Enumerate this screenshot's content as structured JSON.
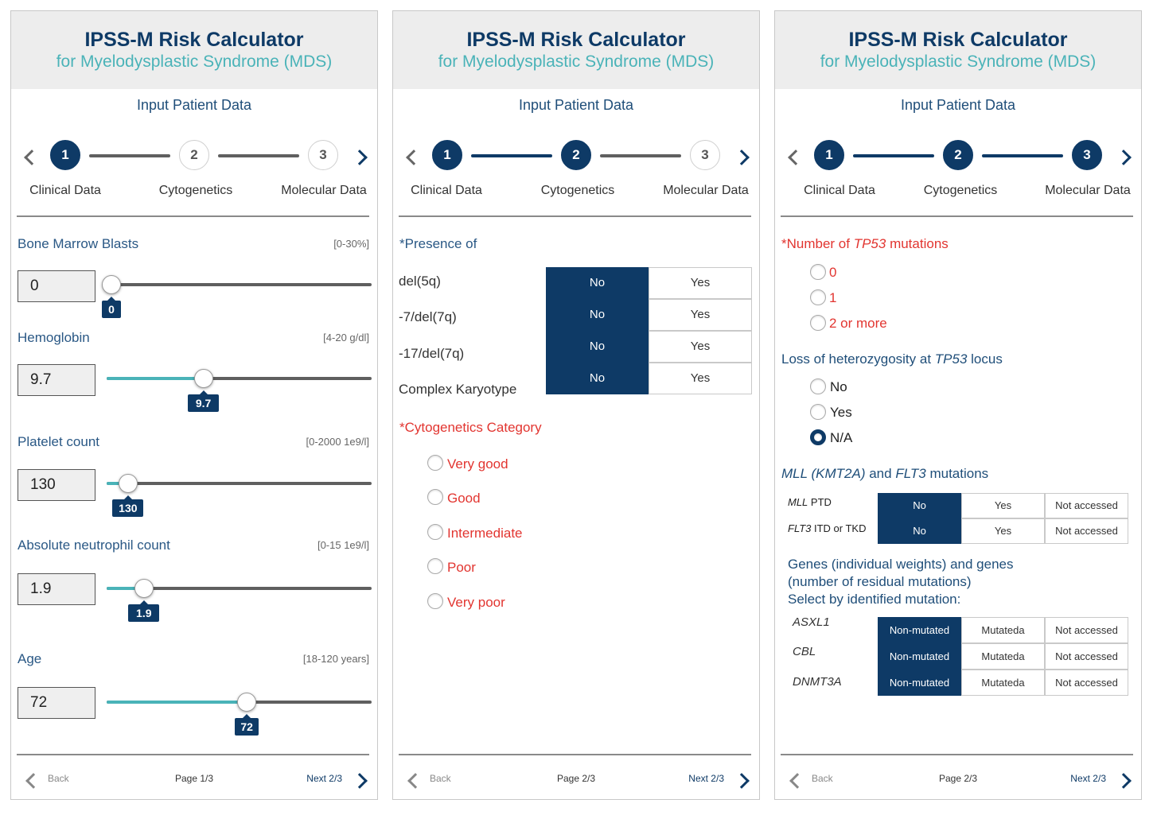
{
  "header": {
    "title": "IPSS-M Risk Calculator",
    "subtitle": "for Myelodysplastic Syndrome (MDS)"
  },
  "section_title": "Input Patient Data",
  "steps": [
    "1",
    "2",
    "3"
  ],
  "step_labels": [
    "Clinical Data",
    "Cytogenetics",
    "Molecular Data"
  ],
  "nav": {
    "back": "Back",
    "next": "Next 2/3",
    "page1": "Page 1/3",
    "page2": "Page 2/3"
  },
  "colors": {
    "navy": "#0e3a66",
    "teal": "#4ab3b8",
    "red": "#e23530"
  },
  "clinical": [
    {
      "label": "Bone Marrow Blasts",
      "range": "[0-30%]",
      "value": "0",
      "fraction": 0.0
    },
    {
      "label": "Hemoglobin",
      "range": "[4-20 g/dl]",
      "value": "9.7",
      "fraction": 0.36
    },
    {
      "label": "Platelet count",
      "range": "[0-2000 1e9/l]",
      "value": "130",
      "fraction": 0.065
    },
    {
      "label": "Absolute neutrophil count",
      "range": "[0-15 1e9/l]",
      "value": "1.9",
      "fraction": 0.127
    },
    {
      "label": "Age",
      "range": "[18-120 years]",
      "value": "72",
      "fraction": 0.53
    }
  ],
  "cyto": {
    "presence_title": "*Presence of",
    "rows": [
      {
        "label": "del(5q)",
        "no": "No",
        "yes": "Yes",
        "selected": "No"
      },
      {
        "label": "-7/del(7q)",
        "no": "No",
        "yes": "Yes",
        "selected": "No"
      },
      {
        "label": "-17/del(7q)",
        "no": "No",
        "yes": "Yes",
        "selected": "No"
      },
      {
        "label": "Complex Karyotype",
        "no": "No",
        "yes": "Yes",
        "selected": "No"
      }
    ],
    "category_title": "*Cytogenetics Category",
    "categories": [
      "Very good",
      "Good",
      "Intermediate",
      "Poor",
      "Very poor"
    ]
  },
  "molecular": {
    "tp53_title_pre": "*Number of ",
    "tp53_gene": "TP53",
    "tp53_title_post": " mutations",
    "tp53_options": [
      "0",
      "1",
      "2 or more"
    ],
    "loh_title_pre": "Loss of heterozygosity at ",
    "loh_gene": "TP53",
    "loh_title_post": " locus",
    "loh_options": [
      "No",
      "Yes",
      "N/A"
    ],
    "loh_selected": "N/A",
    "mll_title_gene1": "MLL (KMT2A)",
    "mll_title_and": " and ",
    "mll_title_gene2": "FLT3",
    "mll_title_post": " mutations",
    "mll_rows": [
      {
        "gene": "MLL",
        "suffix": " PTD",
        "no": "No",
        "yes": "Yes",
        "na": "Not accessed",
        "selected": "No"
      },
      {
        "gene": "FLT3",
        "suffix": " ITD or TKD",
        "no": "No",
        "yes": "Yes",
        "na": "Not accessed",
        "selected": "No"
      }
    ],
    "genes_line1": "Genes (individual weights) and genes",
    "genes_line2": "(number of residual mutations)",
    "genes_line3": "Select by identified mutation:",
    "gene_rows": [
      {
        "gene": "ASXL1",
        "nm": "Non-mutated",
        "m": "Mutateda",
        "na": "Not accessed",
        "selected": "Non-mutated"
      },
      {
        "gene": "CBL",
        "nm": "Non-mutated",
        "m": "Mutateda",
        "na": "Not accessed",
        "selected": "Non-mutated"
      },
      {
        "gene": "DNMT3A",
        "nm": "Non-mutated",
        "m": "Mutateda",
        "na": "Not accessed",
        "selected": "Non-mutated"
      }
    ]
  }
}
